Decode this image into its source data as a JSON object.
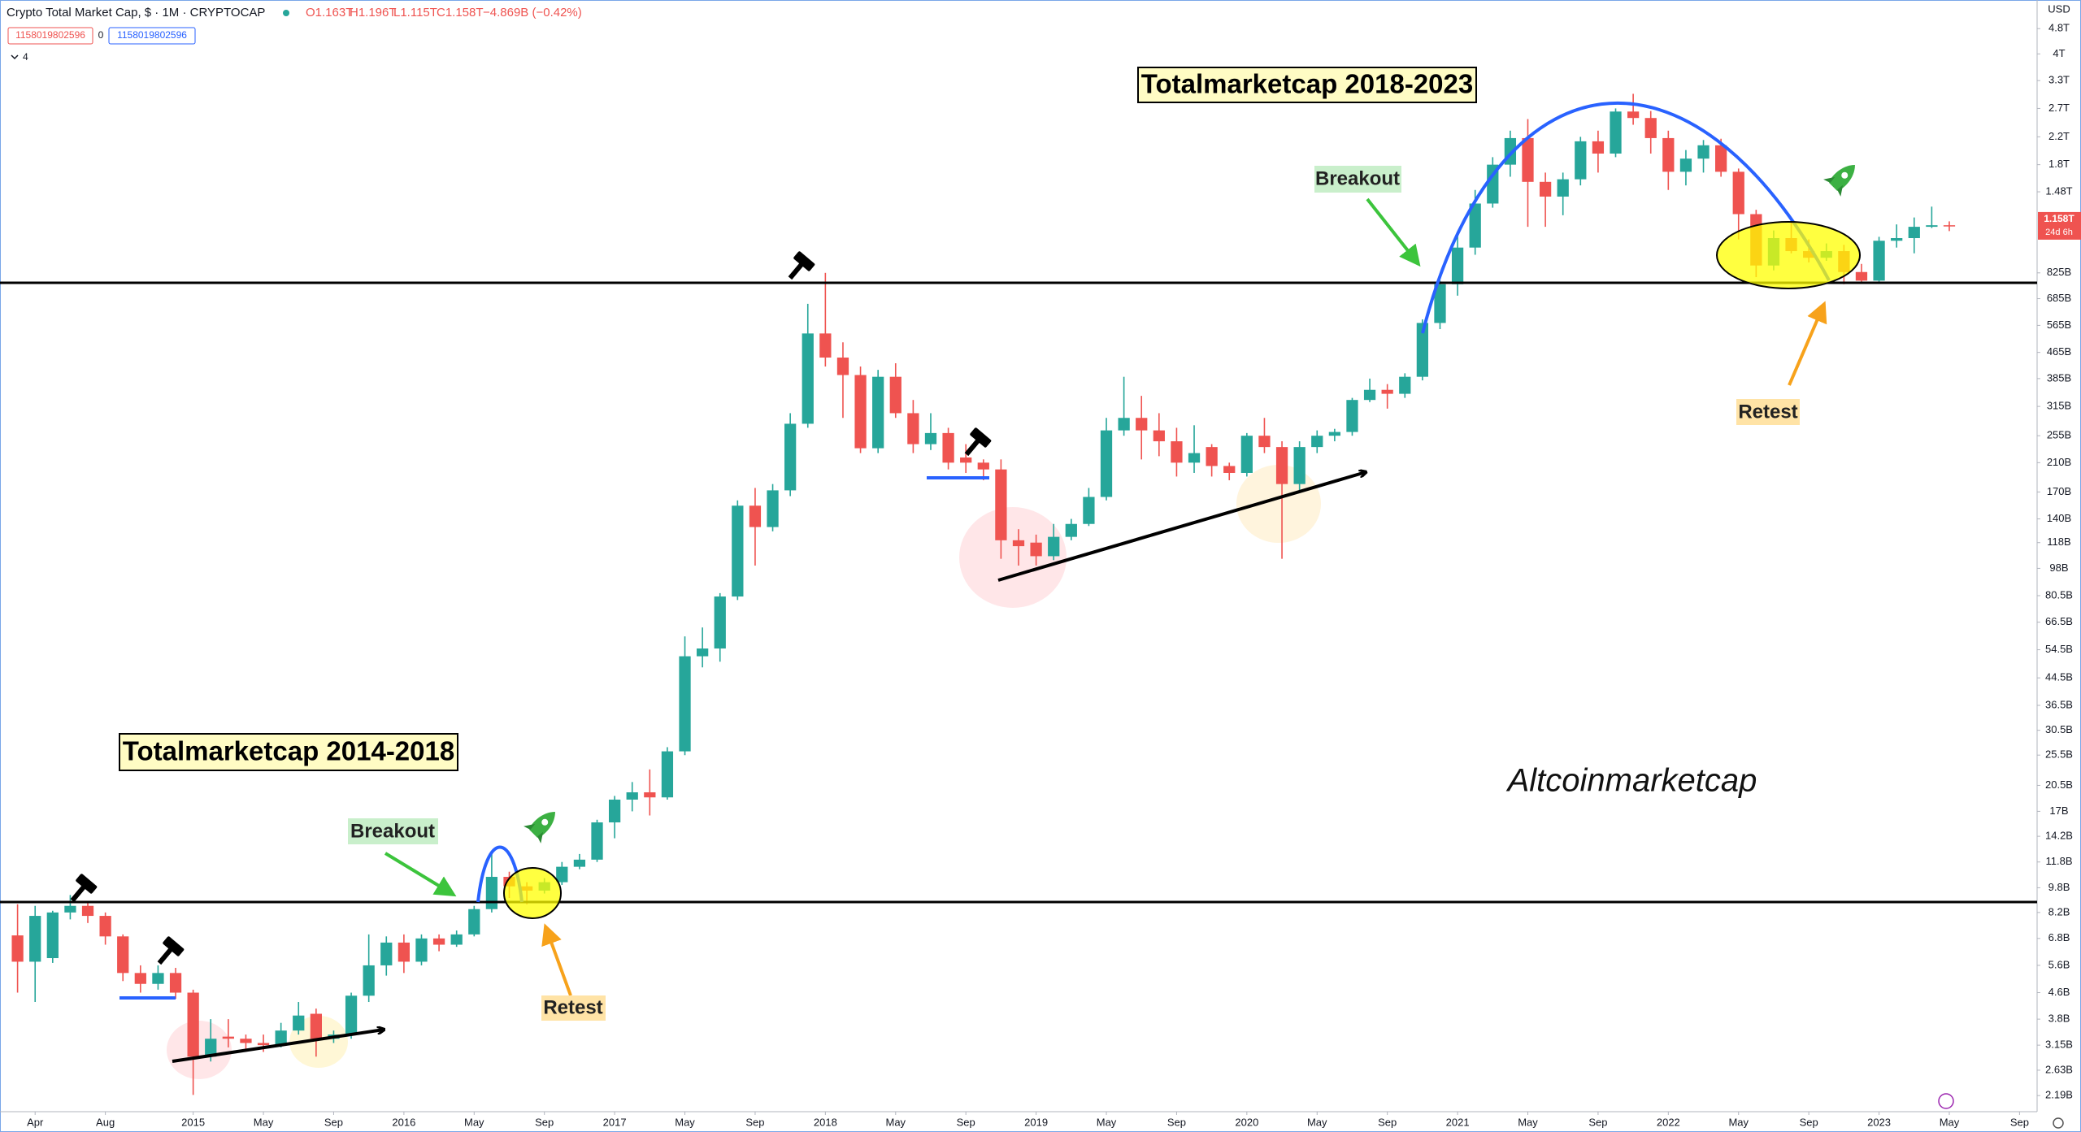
{
  "header": {
    "symbol": "Crypto Total Market Cap, $ · 1M · CRYPTOCAP",
    "ohlc": [
      "O1.163T",
      "H1.196T",
      "L1.115T",
      "C1.158T"
    ],
    "change": "−4.869B (−0.42%)",
    "inputs": [
      "1158019802596",
      "0",
      "1158019802596"
    ],
    "collapsed": "4"
  },
  "chart_data": {
    "type": "candlestick",
    "log": true,
    "grid": false,
    "up_color": "#26a69a",
    "down_color": "#ef5350",
    "currency": "USD",
    "x": [
      "2014-03",
      "2014-04",
      "2014-05",
      "2014-06",
      "2014-07",
      "2014-08",
      "2014-09",
      "2014-10",
      "2014-11",
      "2014-12",
      "2015-01",
      "2015-02",
      "2015-03",
      "2015-04",
      "2015-05",
      "2015-06",
      "2015-07",
      "2015-08",
      "2015-09",
      "2015-10",
      "2015-11",
      "2015-12",
      "2016-01",
      "2016-02",
      "2016-03",
      "2016-04",
      "2016-05",
      "2016-06",
      "2016-07",
      "2016-08",
      "2016-09",
      "2016-10",
      "2016-11",
      "2016-12",
      "2017-01",
      "2017-02",
      "2017-03",
      "2017-04",
      "2017-05",
      "2017-06",
      "2017-07",
      "2017-08",
      "2017-09",
      "2017-10",
      "2017-11",
      "2017-12",
      "2018-01",
      "2018-02",
      "2018-03",
      "2018-04",
      "2018-05",
      "2018-06",
      "2018-07",
      "2018-08",
      "2018-09",
      "2018-10",
      "2018-11",
      "2018-12",
      "2019-01",
      "2019-02",
      "2019-03",
      "2019-04",
      "2019-05",
      "2019-06",
      "2019-07",
      "2019-08",
      "2019-09",
      "2019-10",
      "2019-11",
      "2019-12",
      "2020-01",
      "2020-02",
      "2020-03",
      "2020-04",
      "2020-05",
      "2020-06",
      "2020-07",
      "2020-08",
      "2020-09",
      "2020-10",
      "2020-11",
      "2020-12",
      "2021-01",
      "2021-02",
      "2021-03",
      "2021-04",
      "2021-05",
      "2021-06",
      "2021-07",
      "2021-08",
      "2021-09",
      "2021-10",
      "2021-11",
      "2021-12",
      "2022-01",
      "2022-02",
      "2022-03",
      "2022-04",
      "2022-05",
      "2022-06",
      "2022-07",
      "2022-08",
      "2022-09",
      "2022-10",
      "2022-11",
      "2022-12",
      "2023-01",
      "2023-02",
      "2023-03",
      "2023-04",
      "2023-05"
    ],
    "open": [
      6.95,
      5.75,
      5.9,
      8.2,
      8.6,
      8.0,
      6.9,
      5.3,
      4.9,
      5.3,
      4.6,
      2.9,
      3.35,
      3.3,
      3.2,
      3.15,
      3.5,
      3.95,
      3.3,
      3.4,
      4.5,
      5.6,
      6.6,
      5.75,
      6.8,
      6.5,
      7.0,
      8.4,
      10.6,
      9.9,
      9.6,
      10.2,
      11.4,
      12.0,
      15.7,
      18.5,
      19.5,
      18.8,
      26.2,
      52,
      55,
      80,
      154,
      132,
      172,
      278,
      533,
      448,
      395,
      233,
      390,
      300,
      240,
      260,
      218,
      210,
      200,
      120,
      118,
      107,
      123,
      135,
      164,
      265,
      290,
      265,
      245,
      210,
      235,
      205,
      195,
      255,
      235,
      180,
      235,
      255,
      262,
      330,
      355,
      345,
      390,
      575,
      760,
      990,
      1360,
      1800,
      2180,
      1590,
      1430,
      1620,
      2130,
      1950,
      2640,
      2520,
      2180,
      1710,
      1880,
      2070,
      1710,
      1260,
      870,
      1060,
      965,
      920,
      965,
      830,
      780,
      1040,
      1060,
      1150,
      1163
    ],
    "high": [
      8.7,
      8.6,
      8.3,
      9.3,
      8.9,
      8.2,
      7.0,
      5.6,
      5.6,
      5.5,
      4.7,
      3.8,
      3.8,
      3.4,
      3.4,
      3.7,
      4.3,
      4.1,
      3.5,
      4.6,
      7.0,
      6.9,
      7.0,
      7.0,
      7.0,
      7.2,
      8.6,
      12.6,
      11.0,
      10.2,
      10.5,
      11.8,
      12.5,
      16.0,
      19.0,
      21,
      23,
      27,
      60,
      64,
      82,
      160,
      175,
      180,
      300,
      660,
      825,
      500,
      420,
      410,
      430,
      330,
      300,
      270,
      240,
      215,
      215,
      130,
      125,
      135,
      140,
      175,
      290,
      390,
      340,
      300,
      270,
      275,
      240,
      210,
      260,
      290,
      245,
      245,
      265,
      268,
      335,
      385,
      370,
      400,
      590,
      780,
      1100,
      1500,
      1900,
      2300,
      2500,
      1700,
      1700,
      2200,
      2300,
      2700,
      3000,
      2650,
      2300,
      2000,
      2150,
      2170,
      1750,
      1300,
      1120,
      1200,
      1050,
      1020,
      1010,
      880,
      1070,
      1170,
      1230,
      1330,
      1196
    ],
    "low": [
      4.6,
      4.3,
      5.7,
      7.8,
      7.6,
      6.5,
      5.0,
      4.6,
      4.7,
      4.4,
      2.2,
      2.8,
      3.1,
      3.0,
      3.0,
      3.1,
      3.4,
      2.9,
      3.2,
      3.3,
      4.3,
      5.2,
      5.3,
      5.6,
      6.2,
      6.4,
      6.9,
      8.2,
      9.1,
      8.7,
      9.4,
      10.0,
      11.2,
      11.8,
      14.0,
      17,
      16.5,
      18.5,
      25.5,
      48,
      50,
      78,
      100,
      128,
      165,
      270,
      420,
      290,
      225,
      225,
      290,
      225,
      230,
      200,
      195,
      185,
      105,
      100,
      100,
      104,
      120,
      133,
      160,
      255,
      215,
      220,
      190,
      195,
      190,
      185,
      190,
      225,
      105,
      170,
      225,
      245,
      255,
      325,
      310,
      335,
      380,
      550,
      700,
      940,
      1320,
      1650,
      1150,
      1150,
      1250,
      1550,
      1700,
      1900,
      2400,
      1950,
      1500,
      1550,
      1700,
      1650,
      1050,
      800,
      840,
      950,
      890,
      900,
      760,
      770,
      770,
      990,
      950,
      1140,
      1115
    ],
    "close": [
      5.75,
      8.0,
      8.2,
      8.6,
      8.0,
      6.9,
      5.3,
      4.9,
      5.3,
      4.6,
      2.9,
      3.3,
      3.3,
      3.2,
      3.15,
      3.5,
      3.9,
      3.3,
      3.4,
      4.5,
      5.6,
      6.6,
      5.75,
      6.8,
      6.5,
      7.0,
      8.4,
      10.6,
      9.9,
      9.6,
      10.2,
      11.4,
      12.0,
      15.7,
      18.5,
      19.5,
      18.8,
      26.2,
      52,
      55,
      80,
      154,
      132,
      172,
      278,
      533,
      448,
      395,
      233,
      390,
      300,
      240,
      260,
      210,
      210,
      200,
      120,
      115,
      107,
      123,
      135,
      164,
      265,
      290,
      265,
      245,
      210,
      225,
      205,
      195,
      255,
      235,
      180,
      235,
      255,
      262,
      330,
      355,
      345,
      390,
      575,
      760,
      990,
      1360,
      1800,
      2180,
      1590,
      1430,
      1620,
      2130,
      1950,
      2640,
      2520,
      2180,
      1710,
      1880,
      2070,
      1710,
      1260,
      870,
      1060,
      965,
      920,
      965,
      830,
      780,
      1040,
      1060,
      1150,
      1163,
      1158
    ],
    "xlim": [
      "2014-02",
      "2023-10"
    ],
    "xticks": [
      {
        "value": "2014-04",
        "label": "Apr"
      },
      {
        "value": "2014-08",
        "label": "Aug"
      },
      {
        "value": "2015-01",
        "label": "2015"
      },
      {
        "value": "2015-05",
        "label": "May"
      },
      {
        "value": "2015-09",
        "label": "Sep"
      },
      {
        "value": "2016-01",
        "label": "2016"
      },
      {
        "value": "2016-05",
        "label": "May"
      },
      {
        "value": "2016-09",
        "label": "Sep"
      },
      {
        "value": "2017-01",
        "label": "2017"
      },
      {
        "value": "2017-05",
        "label": "May"
      },
      {
        "value": "2017-09",
        "label": "Sep"
      },
      {
        "value": "2018-01",
        "label": "2018"
      },
      {
        "value": "2018-05",
        "label": "May"
      },
      {
        "value": "2018-09",
        "label": "Sep"
      },
      {
        "value": "2019-01",
        "label": "2019"
      },
      {
        "value": "2019-05",
        "label": "May"
      },
      {
        "value": "2019-09",
        "label": "Sep"
      },
      {
        "value": "2020-01",
        "label": "2020"
      },
      {
        "value": "2020-05",
        "label": "May"
      },
      {
        "value": "2020-09",
        "label": "Sep"
      },
      {
        "value": "2021-01",
        "label": "2021"
      },
      {
        "value": "2021-05",
        "label": "May"
      },
      {
        "value": "2021-09",
        "label": "Sep"
      },
      {
        "value": "2022-01",
        "label": "2022"
      },
      {
        "value": "2022-05",
        "label": "May"
      },
      {
        "value": "2022-09",
        "label": "Sep"
      },
      {
        "value": "2023-01",
        "label": "2023"
      },
      {
        "value": "2023-05",
        "label": "May"
      },
      {
        "value": "2023-09",
        "label": "Sep"
      }
    ],
    "ylim": [
      1.95,
      5900
    ],
    "yticks": [
      {
        "value": 4800,
        "label": "4.8T"
      },
      {
        "value": 4000,
        "label": "4T"
      },
      {
        "value": 3300,
        "label": "3.3T"
      },
      {
        "value": 2700,
        "label": "2.7T"
      },
      {
        "value": 2200,
        "label": "2.2T"
      },
      {
        "value": 1800,
        "label": "1.8T"
      },
      {
        "value": 1480,
        "label": "1.48T"
      },
      {
        "value": 825,
        "label": "825B"
      },
      {
        "value": 685,
        "label": "685B"
      },
      {
        "value": 565,
        "label": "565B"
      },
      {
        "value": 465,
        "label": "465B"
      },
      {
        "value": 385,
        "label": "385B"
      },
      {
        "value": 315,
        "label": "315B"
      },
      {
        "value": 255,
        "label": "255B"
      },
      {
        "value": 210,
        "label": "210B"
      },
      {
        "value": 170,
        "label": "170B"
      },
      {
        "value": 140,
        "label": "140B"
      },
      {
        "value": 118,
        "label": "118B"
      },
      {
        "value": 98,
        "label": "98B"
      },
      {
        "value": 80.5,
        "label": "80.5B"
      },
      {
        "value": 66.5,
        "label": "66.5B"
      },
      {
        "value": 54.5,
        "label": "54.5B"
      },
      {
        "value": 44.5,
        "label": "44.5B"
      },
      {
        "value": 36.5,
        "label": "36.5B"
      },
      {
        "value": 30.5,
        "label": "30.5B"
      },
      {
        "value": 25.5,
        "label": "25.5B"
      },
      {
        "value": 20.5,
        "label": "20.5B"
      },
      {
        "value": 17,
        "label": "17B"
      },
      {
        "value": 14.2,
        "label": "14.2B"
      },
      {
        "value": 11.8,
        "label": "11.8B"
      },
      {
        "value": 9.8,
        "label": "9.8B"
      },
      {
        "value": 8.2,
        "label": "8.2B"
      },
      {
        "value": 6.8,
        "label": "6.8B"
      },
      {
        "value": 5.6,
        "label": "5.6B"
      },
      {
        "value": 4.6,
        "label": "4.6B"
      },
      {
        "value": 3.8,
        "label": "3.8B"
      },
      {
        "value": 3.15,
        "label": "3.15B"
      },
      {
        "value": 2.63,
        "label": "2.63B"
      },
      {
        "value": 2.19,
        "label": "2.19B"
      }
    ],
    "price_label": {
      "value": 1158,
      "label": "1.158T"
    },
    "countdown": "24d 6h",
    "annotations": [
      "Totalmarketcap 2018-2023",
      "Totalmarketcap 2014-2018",
      "Breakout",
      "Breakout",
      "Retest",
      "Retest",
      "Altcoinmarketcap"
    ]
  }
}
